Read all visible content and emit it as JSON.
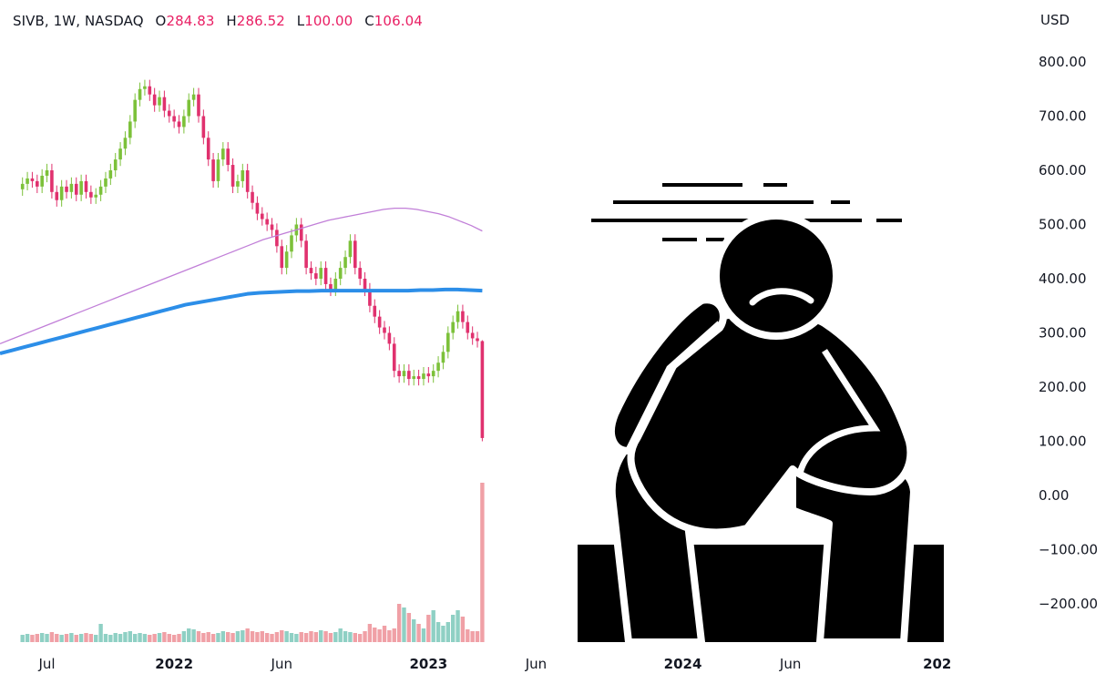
{
  "header": {
    "symbol": "SIVB, 1W, NASDAQ",
    "open_label": "O",
    "open": "284.83",
    "high_label": "H",
    "high": "286.52",
    "low_label": "L",
    "low": "100.00",
    "close_label": "C",
    "close": "106.04"
  },
  "colors": {
    "up": "#7cc13a",
    "down": "#e0316e",
    "vol_up": "#8fd0c4",
    "vol_down": "#f0a0a6",
    "ma_fast": "#c17fd8",
    "ma_slow": "#2c8ee8",
    "figure": "#000000"
  },
  "illustration": {
    "icon": "thinking-worried-person-sitting-icon"
  },
  "chart_data": {
    "type": "candlestick",
    "currency": "USD",
    "ylim": [
      -260,
      840
    ],
    "y_ticks": [
      "800.00",
      "700.00",
      "600.00",
      "500.00",
      "400.00",
      "300.00",
      "200.00",
      "100.00",
      "0.00",
      "−100.00",
      "−200.00"
    ],
    "y_tick_values": [
      800,
      700,
      600,
      500,
      400,
      300,
      200,
      100,
      0,
      -100,
      -200
    ],
    "x_ticks": [
      {
        "label": "Jul",
        "bold": false,
        "week": 5
      },
      {
        "label": "2022",
        "bold": true,
        "week": 31
      },
      {
        "label": "Jun",
        "bold": false,
        "week": 53
      },
      {
        "label": "2023",
        "bold": true,
        "week": 83
      },
      {
        "label": "Jun",
        "bold": false,
        "week": 105
      },
      {
        "label": "2024",
        "bold": true,
        "week": 135
      },
      {
        "label": "Jun",
        "bold": false,
        "week": 157
      },
      {
        "label": "202",
        "bold": true,
        "week": 187
      }
    ],
    "x_range_weeks": [
      -4.6,
      204
    ],
    "closes": [
      575,
      585,
      580,
      570,
      590,
      600,
      560,
      545,
      570,
      560,
      575,
      555,
      580,
      560,
      550,
      555,
      570,
      585,
      600,
      620,
      640,
      660,
      690,
      730,
      750,
      755,
      740,
      720,
      735,
      710,
      700,
      690,
      680,
      700,
      730,
      740,
      700,
      660,
      620,
      580,
      620,
      640,
      610,
      570,
      580,
      600,
      560,
      540,
      520,
      510,
      500,
      490,
      460,
      420,
      450,
      480,
      500,
      470,
      420,
      410,
      400,
      420,
      390,
      380,
      400,
      420,
      440,
      470,
      420,
      400,
      380,
      350,
      330,
      310,
      300,
      280,
      230,
      220,
      230,
      215,
      220,
      215,
      225,
      220,
      230,
      245,
      265,
      300,
      320,
      340,
      320,
      300,
      290,
      285,
      106
    ],
    "volumes": [
      8,
      9,
      8,
      9,
      10,
      9,
      11,
      9,
      8,
      9,
      10,
      8,
      9,
      10,
      9,
      8,
      20,
      9,
      8,
      10,
      9,
      11,
      12,
      9,
      10,
      9,
      8,
      9,
      10,
      11,
      9,
      8,
      9,
      12,
      15,
      14,
      12,
      10,
      11,
      9,
      10,
      12,
      11,
      10,
      12,
      13,
      15,
      12,
      11,
      12,
      10,
      9,
      11,
      13,
      12,
      10,
      9,
      11,
      10,
      12,
      11,
      13,
      12,
      10,
      11,
      15,
      12,
      11,
      10,
      9,
      12,
      20,
      16,
      14,
      18,
      13,
      15,
      42,
      38,
      32,
      25,
      20,
      15,
      30,
      35,
      22,
      18,
      22,
      30,
      35,
      28,
      14,
      12,
      12,
      175
    ],
    "ma_fast": [
      280,
      288,
      296,
      304,
      312,
      320,
      328,
      336,
      344,
      352,
      360,
      368,
      376,
      384,
      392,
      400,
      408,
      416,
      424,
      432,
      440,
      448,
      456,
      464,
      472,
      478,
      484,
      490,
      496,
      502,
      508,
      512,
      516,
      520,
      524,
      528,
      530,
      530,
      528,
      524,
      520,
      514,
      506,
      498,
      488
    ],
    "ma_slow": [
      262,
      268,
      274,
      280,
      286,
      292,
      298,
      304,
      310,
      316,
      322,
      328,
      334,
      340,
      346,
      352,
      356,
      360,
      364,
      368,
      372,
      374,
      375,
      376,
      377,
      377,
      378,
      378,
      378,
      378,
      378,
      378,
      378,
      378,
      379,
      379,
      380,
      380,
      379,
      378
    ]
  },
  "axis": {
    "currency_label": "USD"
  }
}
